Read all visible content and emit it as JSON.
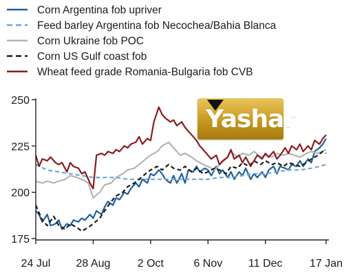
{
  "chart_data": {
    "type": "line",
    "title": "",
    "xlabel": "",
    "ylabel": "",
    "x_ticks": [
      "24 Jul",
      "28 Aug",
      "2 Oct",
      "6 Nov",
      "11 Dec",
      "17 Jan"
    ],
    "y_ticks": [
      175,
      200,
      225,
      250
    ],
    "ylim": [
      175,
      250
    ],
    "grid": false,
    "legend_position": "top-left",
    "series": [
      {
        "name": "Corn Argentina fob upriver",
        "color": "#1f5f9a",
        "style": "solid",
        "points": [
          [
            "24 Jul",
            190
          ],
          [
            "26 Jul",
            188
          ],
          [
            "28 Jul",
            184
          ],
          [
            "31 Jul",
            188
          ],
          [
            "2 Aug",
            182
          ],
          [
            "5 Aug",
            183
          ],
          [
            "7 Aug",
            185
          ],
          [
            "9 Aug",
            180
          ],
          [
            "12 Aug",
            183
          ],
          [
            "14 Aug",
            182
          ],
          [
            "16 Aug",
            185
          ],
          [
            "19 Aug",
            184
          ],
          [
            "21 Aug",
            186
          ],
          [
            "23 Aug",
            185
          ],
          [
            "26 Aug",
            188
          ],
          [
            "28 Aug",
            186
          ],
          [
            "30 Aug",
            190
          ],
          [
            "2 Sep",
            188
          ],
          [
            "4 Sep",
            192
          ],
          [
            "6 Sep",
            195
          ],
          [
            "9 Sep",
            193
          ],
          [
            "11 Sep",
            197
          ],
          [
            "13 Sep",
            196
          ],
          [
            "16 Sep",
            200
          ],
          [
            "18 Sep",
            199
          ],
          [
            "20 Sep",
            202
          ],
          [
            "23 Sep",
            205
          ],
          [
            "25 Sep",
            203
          ],
          [
            "27 Sep",
            207
          ],
          [
            "30 Sep",
            205
          ],
          [
            "2 Oct",
            210
          ],
          [
            "4 Oct",
            209
          ],
          [
            "7 Oct",
            212
          ],
          [
            "9 Oct",
            210
          ],
          [
            "11 Oct",
            207
          ],
          [
            "14 Oct",
            205
          ],
          [
            "16 Oct",
            209
          ],
          [
            "18 Oct",
            205
          ],
          [
            "21 Oct",
            210
          ],
          [
            "23 Oct",
            205
          ],
          [
            "25 Oct",
            212
          ],
          [
            "28 Oct",
            211
          ],
          [
            "30 Oct",
            214
          ],
          [
            "1 Nov",
            211
          ],
          [
            "4 Nov",
            213
          ],
          [
            "6 Nov",
            212
          ],
          [
            "8 Nov",
            209
          ],
          [
            "11 Nov",
            214
          ],
          [
            "13 Nov",
            210
          ],
          [
            "15 Nov",
            212
          ],
          [
            "18 Nov",
            208
          ],
          [
            "20 Nov",
            211
          ],
          [
            "22 Nov",
            207
          ],
          [
            "25 Nov",
            211
          ],
          [
            "27 Nov",
            209
          ],
          [
            "29 Nov",
            213
          ],
          [
            "2 Dec",
            207
          ],
          [
            "4 Dec",
            210
          ],
          [
            "6 Dec",
            208
          ],
          [
            "9 Dec",
            211
          ],
          [
            "11 Dec",
            208
          ],
          [
            "13 Dec",
            212
          ],
          [
            "16 Dec",
            214
          ],
          [
            "18 Dec",
            210
          ],
          [
            "20 Dec",
            214
          ],
          [
            "23 Dec",
            213
          ],
          [
            "25 Dec",
            212
          ],
          [
            "27 Dec",
            215
          ],
          [
            "30 Dec",
            214
          ],
          [
            "1 Jan",
            217
          ],
          [
            "3 Jan",
            214
          ],
          [
            "6 Jan",
            218
          ],
          [
            "8 Jan",
            216
          ],
          [
            "10 Jan",
            222
          ],
          [
            "13 Jan",
            224
          ],
          [
            "15 Jan",
            226
          ],
          [
            "17 Jan",
            229
          ]
        ]
      },
      {
        "name": "Feed barley Argentina fob Necochea/Bahia Blanca",
        "color": "#6fa6d6",
        "style": "dashed",
        "points": [
          [
            "24 Jul",
            215
          ],
          [
            "31 Jul",
            212
          ],
          [
            "7 Aug",
            211
          ],
          [
            "14 Aug",
            210
          ],
          [
            "21 Aug",
            209
          ],
          [
            "28 Aug",
            208
          ],
          [
            "4 Sep",
            208
          ],
          [
            "11 Sep",
            208
          ],
          [
            "18 Sep",
            207
          ],
          [
            "25 Sep",
            207
          ],
          [
            "2 Oct",
            207
          ],
          [
            "9 Oct",
            207
          ],
          [
            "16 Oct",
            207
          ],
          [
            "23 Oct",
            207
          ],
          [
            "30 Oct",
            207
          ],
          [
            "6 Nov",
            207
          ],
          [
            "13 Nov",
            208
          ],
          [
            "20 Nov",
            208
          ],
          [
            "27 Nov",
            209
          ],
          [
            "4 Dec",
            210
          ],
          [
            "11 Dec",
            210
          ],
          [
            "18 Dec",
            211
          ],
          [
            "25 Dec",
            212
          ],
          [
            "1 Jan",
            212
          ],
          [
            "8 Jan",
            213
          ],
          [
            "13 Jan",
            214
          ],
          [
            "17 Jan",
            215
          ]
        ]
      },
      {
        "name": "Corn Ukraine fob POC",
        "color": "#b3b3b3",
        "style": "solid",
        "points": [
          [
            "24 Jul",
            206
          ],
          [
            "28 Jul",
            205
          ],
          [
            "31 Jul",
            206
          ],
          [
            "4 Aug",
            205
          ],
          [
            "7 Aug",
            206
          ],
          [
            "11 Aug",
            207
          ],
          [
            "14 Aug",
            209
          ],
          [
            "18 Aug",
            208
          ],
          [
            "21 Aug",
            207
          ],
          [
            "25 Aug",
            205
          ],
          [
            "28 Aug",
            197
          ],
          [
            "1 Sep",
            200
          ],
          [
            "4 Sep",
            204
          ],
          [
            "8 Sep",
            205
          ],
          [
            "11 Sep",
            208
          ],
          [
            "15 Sep",
            210
          ],
          [
            "18 Sep",
            212
          ],
          [
            "22 Sep",
            213
          ],
          [
            "25 Sep",
            215
          ],
          [
            "29 Sep",
            218
          ],
          [
            "2 Oct",
            220
          ],
          [
            "6 Oct",
            222
          ],
          [
            "9 Oct",
            225
          ],
          [
            "13 Oct",
            227
          ],
          [
            "16 Oct",
            224
          ],
          [
            "20 Oct",
            220
          ],
          [
            "23 Oct",
            221
          ],
          [
            "27 Oct",
            219
          ],
          [
            "30 Oct",
            217
          ],
          [
            "3 Nov",
            215
          ],
          [
            "6 Nov",
            214
          ],
          [
            "10 Nov",
            212
          ],
          [
            "13 Nov",
            215
          ],
          [
            "17 Nov",
            218
          ],
          [
            "20 Nov",
            222
          ],
          [
            "24 Nov",
            219
          ],
          [
            "27 Nov",
            221
          ],
          [
            "1 Dec",
            220
          ],
          [
            "4 Dec",
            222
          ],
          [
            "8 Dec",
            219
          ],
          [
            "11 Dec",
            220
          ],
          [
            "15 Dec",
            219
          ],
          [
            "18 Dec",
            221
          ],
          [
            "22 Dec",
            220
          ],
          [
            "25 Dec",
            221
          ],
          [
            "29 Dec",
            220
          ],
          [
            "1 Jan",
            219
          ],
          [
            "5 Jan",
            221
          ],
          [
            "8 Jan",
            222
          ],
          [
            "12 Jan",
            221
          ],
          [
            "17 Jan",
            223
          ]
        ]
      },
      {
        "name": "Corn US Gulf coast fob",
        "color": "#1a1a1a",
        "style": "dashed",
        "points": [
          [
            "24 Jul",
            193
          ],
          [
            "28 Jul",
            185
          ],
          [
            "31 Jul",
            182
          ],
          [
            "4 Aug",
            187
          ],
          [
            "7 Aug",
            182
          ],
          [
            "11 Aug",
            180
          ],
          [
            "14 Aug",
            183
          ],
          [
            "18 Aug",
            181
          ],
          [
            "21 Aug",
            179
          ],
          [
            "25 Aug",
            181
          ],
          [
            "28 Aug",
            183
          ],
          [
            "1 Sep",
            186
          ],
          [
            "4 Sep",
            190
          ],
          [
            "8 Sep",
            195
          ],
          [
            "11 Sep",
            198
          ],
          [
            "15 Sep",
            200
          ],
          [
            "18 Sep",
            203
          ],
          [
            "22 Sep",
            205
          ],
          [
            "25 Sep",
            207
          ],
          [
            "29 Sep",
            210
          ],
          [
            "2 Oct",
            212
          ],
          [
            "6 Oct",
            214
          ],
          [
            "9 Oct",
            212
          ],
          [
            "13 Oct",
            215
          ],
          [
            "16 Oct",
            213
          ],
          [
            "20 Oct",
            212
          ],
          [
            "23 Oct",
            214
          ],
          [
            "27 Oct",
            211
          ],
          [
            "30 Oct",
            213
          ],
          [
            "3 Nov",
            210
          ],
          [
            "6 Nov",
            211
          ],
          [
            "10 Nov",
            213
          ],
          [
            "13 Nov",
            212
          ],
          [
            "17 Nov",
            210
          ],
          [
            "20 Nov",
            214
          ],
          [
            "24 Nov",
            213
          ],
          [
            "27 Nov",
            216
          ],
          [
            "1 Dec",
            214
          ],
          [
            "4 Dec",
            217
          ],
          [
            "8 Dec",
            215
          ],
          [
            "11 Dec",
            217
          ],
          [
            "15 Dec",
            215
          ],
          [
            "18 Dec",
            216
          ],
          [
            "22 Dec",
            214
          ],
          [
            "25 Dec",
            216
          ],
          [
            "29 Dec",
            215
          ],
          [
            "1 Jan",
            214
          ],
          [
            "5 Jan",
            216
          ],
          [
            "8 Jan",
            218
          ],
          [
            "12 Jan",
            220
          ],
          [
            "15 Jan",
            222
          ],
          [
            "17 Jan",
            221
          ]
        ]
      },
      {
        "name": "Wheat feed grade Romania-Bulgaria fob CVB",
        "color": "#8b1a1f",
        "style": "solid",
        "points": [
          [
            "24 Jul",
            220
          ],
          [
            "26 Jul",
            214
          ],
          [
            "28 Jul",
            218
          ],
          [
            "31 Jul",
            217
          ],
          [
            "2 Aug",
            219
          ],
          [
            "5 Aug",
            216
          ],
          [
            "7 Aug",
            215
          ],
          [
            "9 Aug",
            216
          ],
          [
            "12 Aug",
            211
          ],
          [
            "14 Aug",
            216
          ],
          [
            "16 Aug",
            214
          ],
          [
            "19 Aug",
            213
          ],
          [
            "21 Aug",
            210
          ],
          [
            "23 Aug",
            211
          ],
          [
            "26 Aug",
            205
          ],
          [
            "28 Aug",
            202
          ],
          [
            "30 Aug",
            220
          ],
          [
            "2 Sep",
            221
          ],
          [
            "4 Sep",
            220
          ],
          [
            "6 Sep",
            222
          ],
          [
            "9 Sep",
            221
          ],
          [
            "11 Sep",
            223
          ],
          [
            "13 Sep",
            222
          ],
          [
            "16 Sep",
            225
          ],
          [
            "18 Sep",
            224
          ],
          [
            "20 Sep",
            226
          ],
          [
            "23 Sep",
            227
          ],
          [
            "25 Sep",
            230
          ],
          [
            "27 Sep",
            226
          ],
          [
            "30 Sep",
            229
          ],
          [
            "2 Oct",
            228
          ],
          [
            "4 Oct",
            238
          ],
          [
            "7 Oct",
            246
          ],
          [
            "9 Oct",
            242
          ],
          [
            "11 Oct",
            240
          ],
          [
            "14 Oct",
            238
          ],
          [
            "16 Oct",
            239
          ],
          [
            "18 Oct",
            236
          ],
          [
            "21 Oct",
            238
          ],
          [
            "23 Oct",
            235
          ],
          [
            "25 Oct",
            233
          ],
          [
            "28 Oct",
            230
          ],
          [
            "30 Oct",
            228
          ],
          [
            "1 Nov",
            225
          ],
          [
            "4 Nov",
            222
          ],
          [
            "6 Nov",
            220
          ],
          [
            "8 Nov",
            218
          ],
          [
            "11 Nov",
            220
          ],
          [
            "13 Nov",
            215
          ],
          [
            "15 Nov",
            217
          ],
          [
            "18 Nov",
            219
          ],
          [
            "20 Nov",
            223
          ],
          [
            "22 Nov",
            218
          ],
          [
            "25 Nov",
            220
          ],
          [
            "27 Nov",
            216
          ],
          [
            "29 Nov",
            219
          ],
          [
            "2 Dec",
            214
          ],
          [
            "4 Dec",
            217
          ],
          [
            "6 Dec",
            220
          ],
          [
            "9 Dec",
            218
          ],
          [
            "11 Dec",
            221
          ],
          [
            "13 Dec",
            219
          ],
          [
            "16 Dec",
            222
          ],
          [
            "18 Dec",
            218
          ],
          [
            "20 Dec",
            220
          ],
          [
            "23 Dec",
            224
          ],
          [
            "25 Dec",
            221
          ],
          [
            "27 Dec",
            225
          ],
          [
            "30 Dec",
            223
          ],
          [
            "1 Jan",
            226
          ],
          [
            "3 Jan",
            222
          ],
          [
            "6 Jan",
            225
          ],
          [
            "8 Jan",
            223
          ],
          [
            "10 Jan",
            228
          ],
          [
            "13 Jan",
            226
          ],
          [
            "15 Jan",
            229
          ],
          [
            "17 Jan",
            231
          ]
        ]
      }
    ]
  },
  "watermark": {
    "text": "Yashar",
    "color": "#c9981f"
  }
}
